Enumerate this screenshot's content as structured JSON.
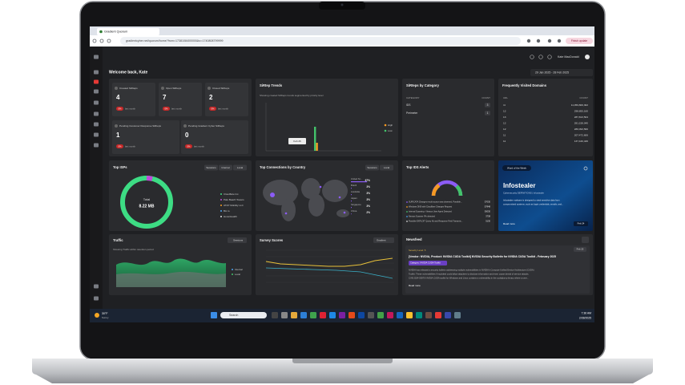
{
  "browser": {
    "tab": "Gradient Quorum",
    "url": "gradientcyber.net/quorum/home?from=1738108400000&to=1740808799999",
    "update": "Finish update"
  },
  "header": {
    "user": "Kate MacDonald",
    "welcome": "Welcome back, Kate",
    "date_range": "29 Jan 2025 - 28 Feb 2025"
  },
  "stats": [
    {
      "label": "Created SiRteps",
      "value": "4",
      "badge": "0%",
      "note": "last month"
    },
    {
      "label": "Open SiRteps",
      "value": "7",
      "badge": "0%",
      "note": "last month"
    },
    {
      "label": "Closed SiRteps",
      "value": "2",
      "badge": "0%",
      "note": "last month"
    },
    {
      "label": "Pending Customer Response SiRteps",
      "value": "1",
      "badge": "0%",
      "note": "last month"
    },
    {
      "label": "Pending Gradient Cyber SiRteps",
      "value": "0",
      "badge": "0%",
      "note": "last month"
    }
  ],
  "trends": {
    "title": "SiRtep Trends",
    "subtitle": "Showing created SiRteps trends segmented by priority level",
    "legend": [
      "High",
      "Low"
    ],
    "tooltip": "Feb 26"
  },
  "category": {
    "title": "SiRteps by Category",
    "columns": [
      "CATEGORY",
      "COUNT"
    ],
    "rows": [
      [
        "IDS",
        "3"
      ],
      [
        "Perimeter",
        "1"
      ]
    ]
  },
  "domains": {
    "title": "Frequently Visited Domains",
    "columns": [
      "URL",
      "COUNT"
    ],
    "rows": [
      [
        "r4",
        "11,059,806,302"
      ],
      [
        "12",
        "298,855,160"
      ],
      [
        "13",
        "287,813,504"
      ],
      [
        "12",
        "281,158,040"
      ],
      [
        "12",
        "280,093,560"
      ],
      [
        "11",
        "207,472,606"
      ],
      [
        "11",
        "137,440,446"
      ]
    ]
  },
  "isps": {
    "title": "Top ISPs",
    "controls": [
      "Sessions",
      "Internal",
      "Local"
    ],
    "total_label": "Total",
    "total": "8.22 MB",
    "legend": [
      "Cloudflare Inc.",
      "Palo Beach Towers",
      "AT&T Mobility LLC",
      "BA.ro",
      "HonorHealth"
    ]
  },
  "countries": {
    "title": "Top Connections by Country",
    "controls": [
      "Sessions",
      "Local"
    ],
    "rows": [
      [
        "United St...",
        "67%"
      ],
      [
        "Brazil",
        "3%"
      ],
      [
        "Australia",
        "3%"
      ],
      [
        "Japan",
        "3%"
      ],
      [
        "Singapore",
        "3%"
      ],
      [
        "China",
        "2%"
      ]
    ]
  },
  "ids": {
    "title": "Top IDS Alerts",
    "rows": [
      [
        "SURICATA Changes result source was observed, Possible...",
        "37030"
      ],
      [
        "Windows DNS with Cloudflare Changes Request",
        "57848"
      ],
      [
        "Internal Scanning - Nessus User Agent Detected",
        "30030"
      ],
      [
        "Nessus Scanner IPs detected",
        "3738"
      ],
      [
        "Possible EXPLOIT Query Kit and Response Field Transmis...",
        "5130"
      ]
    ]
  },
  "word": {
    "label": "Word of the Week",
    "term": "Infostealer",
    "source": "Cybersecurity DEFINITIONS | Infostealer",
    "body": [
      "Infostealer malware is designed to steal sensitive data from",
      "compromised systems, such as login credentials, emails, and..."
    ],
    "more": "Read more",
    "date": "Feb 24"
  },
  "traffic": {
    "title": "Traffic",
    "control": "Sessions",
    "subtitle": "Showing Traffic within retention period",
    "legend": [
      "Internal",
      "Local"
    ]
  },
  "survey": {
    "title": "Survey Scores",
    "control": "Gradient"
  },
  "news": {
    "title": "Newsfeed",
    "severity": "Severity Level: 5",
    "headline": "[Vendor: NVIDIA, Product: NVIDIA CUDA Toolkit] NVIDIA Security Bulletin for NVIDIA CUDA Toolkit - February 2025",
    "date": "Feb 25",
    "tag": "Category: NVIDIA CUDA Toolkit",
    "body": [
      "NVIDIA has released a security bulletin addressing multiple vulnerabilities in NVIDIA's Compute Unified Device Architecture (CUDA)",
      "Toolkit. These vulnerabilities if exploited could allow attackers to disclose information and even cause denial of service attacks.",
      "CVE-2024-53870 NVIDIA CUDA toolkit for Windows and Linux contains a vulnerability in the cuobjdump binary where a user..."
    ],
    "more": "Read more"
  },
  "taskbar": {
    "temp": "30°F",
    "weather": "Sunny",
    "search": "Search",
    "time": "7:36 AM",
    "date": "2/28/2025"
  }
}
